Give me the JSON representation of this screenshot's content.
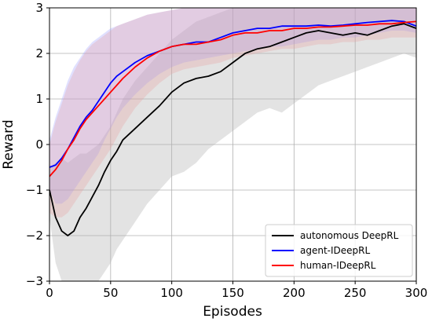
{
  "chart_data": {
    "type": "line",
    "xlabel": "Episodes",
    "ylabel": "Reward",
    "xlim": [
      0,
      300
    ],
    "ylim": [
      -3,
      3
    ],
    "xticks": [
      0,
      50,
      100,
      150,
      200,
      250,
      300
    ],
    "yticks": [
      -3,
      -2,
      -1,
      0,
      1,
      2,
      3
    ],
    "grid": true,
    "legend_position": "lower right",
    "series": [
      {
        "name": "autonomous DeepRL",
        "color": "#000000",
        "band_color": "#b0b0b0",
        "x": [
          0,
          5,
          10,
          15,
          20,
          25,
          30,
          35,
          40,
          45,
          50,
          55,
          60,
          70,
          80,
          90,
          100,
          110,
          120,
          130,
          140,
          150,
          160,
          170,
          180,
          190,
          200,
          210,
          220,
          230,
          240,
          250,
          260,
          270,
          280,
          290,
          300
        ],
        "values": [
          -1.0,
          -1.6,
          -1.9,
          -2.0,
          -1.9,
          -1.6,
          -1.4,
          -1.15,
          -0.9,
          -0.6,
          -0.35,
          -0.15,
          0.1,
          0.35,
          0.6,
          0.85,
          1.15,
          1.35,
          1.45,
          1.5,
          1.6,
          1.8,
          2.0,
          2.1,
          2.15,
          2.25,
          2.35,
          2.45,
          2.5,
          2.45,
          2.4,
          2.45,
          2.4,
          2.5,
          2.6,
          2.65,
          2.55
        ],
        "lower": [
          -1.6,
          -2.6,
          -3.0,
          -3.0,
          -3.0,
          -3.0,
          -3.0,
          -3.0,
          -3.0,
          -2.8,
          -2.6,
          -2.3,
          -2.1,
          -1.7,
          -1.3,
          -1.0,
          -0.7,
          -0.6,
          -0.4,
          -0.1,
          0.1,
          0.3,
          0.5,
          0.7,
          0.8,
          0.7,
          0.9,
          1.1,
          1.3,
          1.4,
          1.5,
          1.6,
          1.7,
          1.8,
          1.9,
          2.0,
          1.9
        ],
        "upper": [
          -0.5,
          -0.4,
          -0.3,
          -0.4,
          -0.3,
          -0.2,
          -0.2,
          -0.1,
          0.0,
          0.2,
          0.4,
          0.7,
          1.0,
          1.4,
          1.7,
          2.0,
          2.3,
          2.5,
          2.7,
          2.8,
          2.9,
          3.0,
          3.0,
          3.0,
          3.0,
          3.0,
          3.0,
          3.0,
          3.0,
          3.0,
          3.0,
          3.0,
          3.0,
          3.0,
          3.0,
          3.0,
          3.0
        ]
      },
      {
        "name": "agent-IDeepRL",
        "color": "#0000ff",
        "band_color": "#9999ff",
        "x": [
          0,
          5,
          10,
          15,
          20,
          25,
          30,
          35,
          40,
          45,
          50,
          55,
          60,
          70,
          80,
          90,
          100,
          110,
          120,
          130,
          140,
          150,
          160,
          170,
          180,
          190,
          200,
          210,
          220,
          230,
          240,
          250,
          260,
          270,
          280,
          290,
          300
        ],
        "values": [
          -0.5,
          -0.45,
          -0.3,
          -0.1,
          0.15,
          0.4,
          0.6,
          0.75,
          0.95,
          1.15,
          1.35,
          1.5,
          1.6,
          1.8,
          1.95,
          2.05,
          2.15,
          2.2,
          2.25,
          2.25,
          2.35,
          2.45,
          2.5,
          2.55,
          2.55,
          2.6,
          2.6,
          2.6,
          2.62,
          2.6,
          2.62,
          2.65,
          2.68,
          2.7,
          2.72,
          2.7,
          2.6
        ],
        "lower": [
          -1.0,
          -1.3,
          -1.3,
          -1.2,
          -1.0,
          -0.8,
          -0.6,
          -0.4,
          -0.2,
          0.1,
          0.35,
          0.6,
          0.8,
          1.1,
          1.35,
          1.55,
          1.7,
          1.8,
          1.85,
          1.9,
          1.95,
          2.0,
          2.05,
          2.1,
          2.15,
          2.15,
          2.2,
          2.25,
          2.3,
          2.3,
          2.35,
          2.35,
          2.4,
          2.45,
          2.5,
          2.5,
          2.45
        ],
        "upper": [
          0.1,
          0.6,
          1.0,
          1.4,
          1.7,
          1.9,
          2.1,
          2.25,
          2.35,
          2.45,
          2.55,
          2.6,
          2.65,
          2.75,
          2.85,
          2.9,
          2.95,
          3.0,
          3.0,
          3.0,
          3.0,
          3.0,
          3.0,
          3.0,
          3.0,
          3.0,
          3.0,
          3.0,
          3.0,
          3.0,
          3.0,
          3.0,
          3.0,
          3.0,
          3.0,
          3.0,
          3.0
        ]
      },
      {
        "name": "human-IDeepRL",
        "color": "#ff0000",
        "band_color": "#e8a0a0",
        "x": [
          0,
          5,
          10,
          15,
          20,
          25,
          30,
          35,
          40,
          45,
          50,
          55,
          60,
          70,
          80,
          90,
          100,
          110,
          120,
          130,
          140,
          150,
          160,
          170,
          180,
          190,
          200,
          210,
          220,
          230,
          240,
          250,
          260,
          270,
          280,
          290,
          300
        ],
        "values": [
          -0.7,
          -0.55,
          -0.35,
          -0.1,
          0.1,
          0.35,
          0.55,
          0.7,
          0.85,
          1.0,
          1.15,
          1.3,
          1.45,
          1.7,
          1.9,
          2.05,
          2.15,
          2.2,
          2.2,
          2.25,
          2.3,
          2.4,
          2.45,
          2.45,
          2.5,
          2.5,
          2.55,
          2.55,
          2.58,
          2.58,
          2.6,
          2.62,
          2.62,
          2.65,
          2.65,
          2.68,
          2.7
        ],
        "lower": [
          -1.5,
          -1.6,
          -1.6,
          -1.5,
          -1.3,
          -1.1,
          -0.9,
          -0.7,
          -0.5,
          -0.3,
          -0.1,
          0.15,
          0.4,
          0.8,
          1.1,
          1.35,
          1.55,
          1.65,
          1.7,
          1.75,
          1.8,
          1.9,
          1.95,
          2.0,
          2.05,
          2.1,
          2.1,
          2.15,
          2.2,
          2.2,
          2.25,
          2.25,
          2.3,
          2.3,
          2.35,
          2.35,
          2.35
        ],
        "upper": [
          0.0,
          0.5,
          0.9,
          1.3,
          1.6,
          1.85,
          2.05,
          2.2,
          2.3,
          2.4,
          2.5,
          2.6,
          2.65,
          2.75,
          2.85,
          2.9,
          2.95,
          3.0,
          3.0,
          3.0,
          3.0,
          3.0,
          3.0,
          3.0,
          3.0,
          3.0,
          3.0,
          3.0,
          3.0,
          3.0,
          3.0,
          3.0,
          3.0,
          3.0,
          3.0,
          3.0,
          3.0
        ]
      }
    ]
  }
}
